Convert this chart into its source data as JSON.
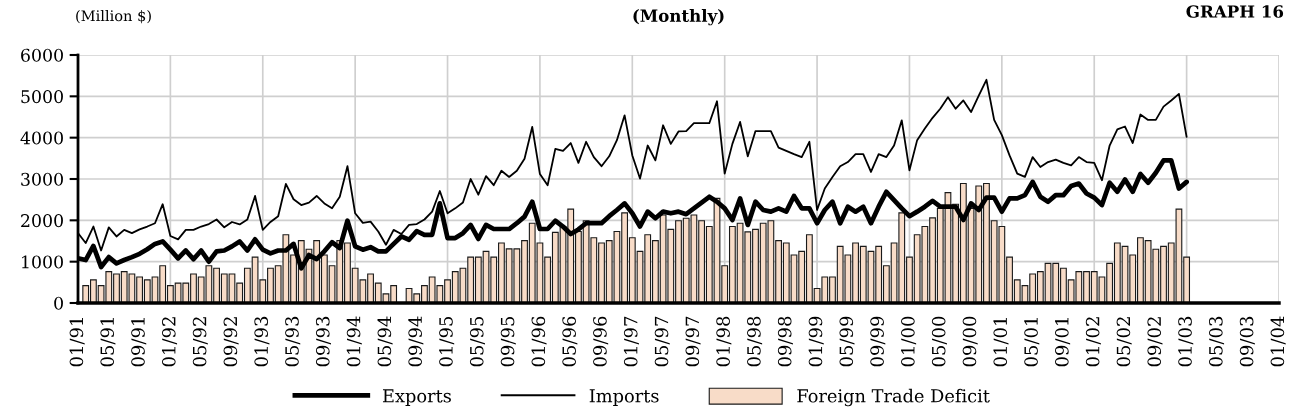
{
  "chart_data": {
    "type": "line",
    "title": "(Monthly)",
    "ylabel": "(Million $)",
    "annotations": [
      "GRAPH 16"
    ],
    "categories": [
      "01/91",
      null,
      null,
      null,
      "05/91",
      null,
      null,
      null,
      "09/91",
      null,
      null,
      null,
      "01/92",
      null,
      null,
      null,
      "05/92",
      null,
      null,
      null,
      "09/92",
      null,
      null,
      null,
      "01/93",
      null,
      null,
      null,
      "05/93",
      null,
      null,
      null,
      "09/93",
      null,
      null,
      null,
      "01/94",
      null,
      null,
      null,
      "05/94",
      null,
      null,
      null,
      "09/94",
      null,
      null,
      null,
      "01/95",
      null,
      null,
      null,
      "05/95",
      null,
      null,
      null,
      "09/95",
      null,
      null,
      null,
      "01/96",
      null,
      null,
      null,
      "05/96",
      null,
      null,
      null,
      "09/96",
      null,
      null,
      null,
      "01/97",
      null,
      null,
      null,
      "05/97",
      null,
      null,
      null,
      "09/97",
      null,
      null,
      null,
      "01/98",
      null,
      null,
      null,
      "05/98",
      null,
      null,
      null,
      "09/98",
      null,
      null,
      null,
      "01/99",
      null,
      null,
      null,
      "05/99",
      null,
      null,
      null,
      "09/99",
      null,
      null,
      null,
      "01/00",
      null,
      null,
      null,
      "05/00",
      null,
      null,
      null,
      "09/00",
      null,
      null,
      null,
      "01/01",
      null,
      null,
      null,
      "05/01",
      null,
      null,
      null,
      "09/01",
      null,
      null,
      null,
      "01/02",
      null,
      null,
      null,
      "05/02",
      null,
      null,
      null,
      "09/02",
      null,
      null,
      null,
      "01/03",
      null,
      null,
      null,
      "05/03",
      null,
      null,
      null,
      "09/03",
      null,
      null,
      null,
      "01/04"
    ],
    "series": [
      {
        "name": "Exports",
        "color": "#000000",
        "values": [
          1080,
          1040,
          1380,
          870,
          1110,
          960,
          1040,
          1110,
          1190,
          1300,
          1430,
          1490,
          1290,
          1080,
          1270,
          1060,
          1270,
          1000,
          1250,
          1270,
          1370,
          1490,
          1270,
          1540,
          1290,
          1200,
          1270,
          1270,
          1430,
          840,
          1160,
          1060,
          1250,
          1470,
          1330,
          1990,
          1370,
          1290,
          1350,
          1250,
          1250,
          1430,
          1610,
          1530,
          1740,
          1650,
          1650,
          2410,
          1570,
          1570,
          1690,
          1890,
          1550,
          1890,
          1790,
          1790,
          1790,
          1930,
          2090,
          2450,
          1790,
          1790,
          1990,
          1850,
          1670,
          1780,
          1930,
          1930,
          1930,
          2100,
          2250,
          2410,
          2170,
          1850,
          2210,
          2050,
          2210,
          2170,
          2210,
          2150,
          2290,
          2430,
          2570,
          2450,
          2290,
          2010,
          2530,
          1890,
          2450,
          2250,
          2210,
          2290,
          2210,
          2590,
          2290,
          2290,
          1930,
          2250,
          2450,
          1930,
          2330,
          2210,
          2330,
          1930,
          2330,
          2690,
          2490,
          2290,
          2100,
          2210,
          2330,
          2470,
          2330,
          2330,
          2330,
          2010,
          2410,
          2250,
          2550,
          2550,
          2210,
          2530,
          2530,
          2610,
          2930,
          2570,
          2450,
          2610,
          2610,
          2830,
          2890,
          2650,
          2550,
          2370,
          2910,
          2690,
          2990,
          2690,
          3120,
          2910,
          3150,
          3450,
          3450,
          2770,
          2930,
          null,
          null,
          null,
          null,
          null,
          null,
          null,
          null,
          null,
          null,
          null,
          null
        ]
      },
      {
        "name": "Imports",
        "color": "#000000",
        "values": [
          1690,
          1450,
          1850,
          1270,
          1830,
          1610,
          1770,
          1690,
          1780,
          1850,
          1930,
          2390,
          1620,
          1540,
          1770,
          1770,
          1850,
          1910,
          2020,
          1830,
          1960,
          1900,
          2020,
          2590,
          1770,
          1960,
          2100,
          2880,
          2510,
          2370,
          2430,
          2590,
          2410,
          2290,
          2570,
          3310,
          2170,
          1940,
          1970,
          1730,
          1410,
          1770,
          1670,
          1890,
          1910,
          2020,
          2210,
          2710,
          2170,
          2290,
          2430,
          3000,
          2620,
          3070,
          2850,
          3200,
          3050,
          3200,
          3490,
          4260,
          3120,
          2850,
          3730,
          3680,
          3870,
          3390,
          3900,
          3530,
          3310,
          3550,
          3940,
          4540,
          3570,
          3010,
          3810,
          3450,
          4300,
          3850,
          4150,
          4160,
          4350,
          4350,
          4350,
          4880,
          3130,
          3850,
          4380,
          3550,
          4160,
          4160,
          4160,
          3760,
          3680,
          3600,
          3530,
          3900,
          2250,
          2770,
          3050,
          3310,
          3410,
          3600,
          3600,
          3170,
          3600,
          3530,
          3810,
          4420,
          3210,
          3940,
          4220,
          4480,
          4700,
          4980,
          4700,
          4900,
          4620,
          5020,
          5400,
          4430,
          4060,
          3570,
          3130,
          3050,
          3530,
          3290,
          3410,
          3470,
          3390,
          3330,
          3530,
          3410,
          3390,
          2970,
          3810,
          4200,
          4270,
          3870,
          4560,
          4430,
          4430,
          4750,
          4900,
          5060,
          4020,
          null,
          null,
          null,
          null,
          null,
          null,
          null,
          null,
          null,
          null,
          null,
          null
        ]
      },
      {
        "name": "Foreign Trade Deficit",
        "type": "bar",
        "color": "#f8dcc8",
        "values": [
          null,
          420,
          560,
          420,
          760,
          700,
          760,
          700,
          630,
          560,
          630,
          900,
          420,
          480,
          480,
          700,
          630,
          900,
          840,
          700,
          700,
          480,
          840,
          1110,
          560,
          840,
          900,
          1650,
          1160,
          1510,
          1300,
          1510,
          1160,
          900,
          1510,
          1450,
          840,
          560,
          700,
          480,
          220,
          420,
          null,
          350,
          220,
          420,
          630,
          420,
          560,
          760,
          840,
          1110,
          1110,
          1250,
          1110,
          1450,
          1310,
          1310,
          1510,
          1930,
          1450,
          1110,
          1710,
          1850,
          2270,
          1730,
          1990,
          1580,
          1450,
          1510,
          1730,
          2180,
          1580,
          1250,
          1650,
          1510,
          2130,
          1780,
          1990,
          2050,
          2130,
          1990,
          1850,
          2530,
          900,
          1850,
          1930,
          1720,
          1780,
          1930,
          1990,
          1510,
          1450,
          1160,
          1250,
          1650,
          350,
          630,
          630,
          1370,
          1160,
          1450,
          1370,
          1250,
          1370,
          900,
          1450,
          2180,
          1110,
          1650,
          1850,
          2060,
          2290,
          2670,
          2390,
          2890,
          2290,
          2830,
          2890,
          1990,
          1850,
          1110,
          560,
          420,
          700,
          760,
          960,
          960,
          840,
          560,
          760,
          760,
          760,
          630,
          960,
          1450,
          1370,
          1160,
          1580,
          1510,
          1300,
          1370,
          1450,
          2270,
          1110,
          null,
          null,
          null,
          null,
          null,
          null,
          null,
          null,
          null,
          null,
          null,
          null
        ]
      }
    ],
    "ylim": [
      0,
      6000
    ],
    "yticks": [
      0,
      1000,
      2000,
      3000,
      4000,
      5000,
      6000
    ],
    "grid": true,
    "legend": "bottom"
  }
}
